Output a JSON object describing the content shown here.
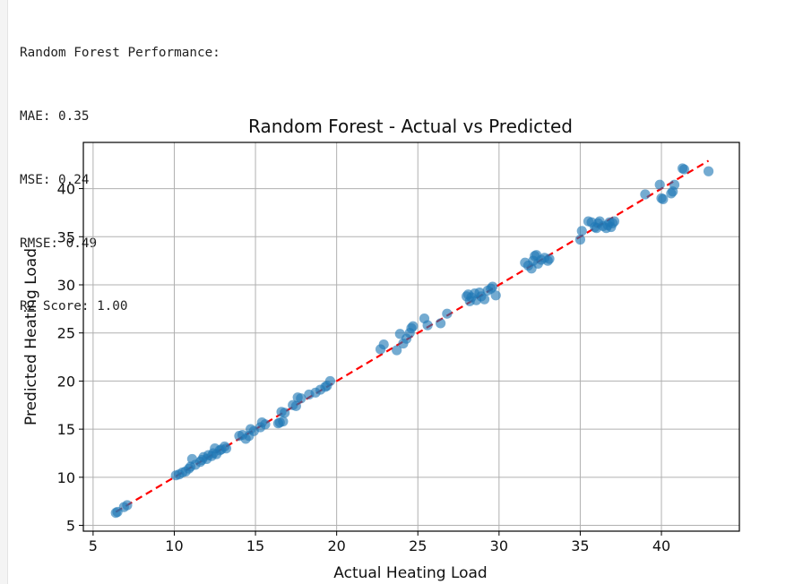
{
  "output": {
    "lines": [
      "Random Forest Performance:",
      "MAE: 0.35",
      "MSE: 0.24",
      "RMSE: 0.49",
      "R2 Score: 1.00"
    ]
  },
  "chart_data": {
    "type": "scatter",
    "title": "Random Forest - Actual vs Predicted",
    "xlabel": "Actual Heating Load",
    "ylabel": "Predicted Heating Load",
    "xlim": [
      4.4,
      44.8
    ],
    "ylim": [
      4.4,
      44.8
    ],
    "xticks": [
      5,
      10,
      15,
      20,
      25,
      30,
      35,
      40
    ],
    "yticks": [
      5,
      10,
      15,
      20,
      25,
      30,
      35,
      40
    ],
    "grid": true,
    "point_color": "#1f77b4",
    "reference_line": {
      "x": [
        6.4,
        42.9
      ],
      "y": [
        6.4,
        42.9
      ],
      "color": "#ff0000",
      "style": "dashed"
    },
    "points": [
      [
        6.4,
        6.3
      ],
      [
        6.5,
        6.4
      ],
      [
        6.9,
        6.9
      ],
      [
        7.1,
        7.1
      ],
      [
        10.1,
        10.2
      ],
      [
        10.3,
        10.3
      ],
      [
        10.5,
        10.5
      ],
      [
        10.7,
        10.6
      ],
      [
        10.9,
        10.9
      ],
      [
        11.0,
        11.1
      ],
      [
        11.1,
        11.9
      ],
      [
        11.3,
        11.3
      ],
      [
        11.6,
        11.6
      ],
      [
        11.7,
        11.8
      ],
      [
        11.8,
        12.1
      ],
      [
        12.0,
        11.9
      ],
      [
        12.1,
        12.3
      ],
      [
        12.3,
        12.2
      ],
      [
        12.4,
        12.5
      ],
      [
        12.5,
        13.0
      ],
      [
        12.6,
        12.4
      ],
      [
        12.8,
        12.8
      ],
      [
        12.9,
        12.9
      ],
      [
        13.1,
        13.2
      ],
      [
        13.2,
        13.0
      ],
      [
        14.0,
        14.3
      ],
      [
        14.2,
        14.4
      ],
      [
        14.4,
        14.0
      ],
      [
        14.6,
        14.3
      ],
      [
        14.7,
        15.0
      ],
      [
        14.9,
        14.8
      ],
      [
        15.3,
        15.2
      ],
      [
        15.4,
        15.7
      ],
      [
        15.6,
        15.5
      ],
      [
        16.4,
        15.6
      ],
      [
        16.5,
        15.7
      ],
      [
        16.6,
        16.8
      ],
      [
        16.7,
        15.8
      ],
      [
        16.8,
        16.7
      ],
      [
        17.3,
        17.5
      ],
      [
        17.5,
        17.4
      ],
      [
        17.6,
        18.3
      ],
      [
        17.8,
        18.2
      ],
      [
        18.3,
        18.6
      ],
      [
        18.7,
        18.8
      ],
      [
        19.0,
        19.1
      ],
      [
        19.3,
        19.4
      ],
      [
        19.4,
        19.5
      ],
      [
        19.6,
        20.0
      ],
      [
        22.7,
        23.3
      ],
      [
        22.9,
        23.8
      ],
      [
        23.7,
        23.2
      ],
      [
        23.9,
        24.9
      ],
      [
        24.1,
        23.9
      ],
      [
        24.3,
        24.4
      ],
      [
        24.5,
        25.0
      ],
      [
        24.6,
        25.5
      ],
      [
        24.7,
        25.7
      ],
      [
        25.4,
        26.5
      ],
      [
        25.6,
        25.8
      ],
      [
        26.4,
        26.0
      ],
      [
        26.8,
        27.0
      ],
      [
        28.0,
        28.8
      ],
      [
        28.1,
        29.0
      ],
      [
        28.2,
        28.3
      ],
      [
        28.3,
        28.7
      ],
      [
        28.5,
        29.1
      ],
      [
        28.6,
        28.4
      ],
      [
        28.8,
        29.2
      ],
      [
        28.9,
        28.8
      ],
      [
        29.1,
        28.5
      ],
      [
        29.3,
        29.4
      ],
      [
        29.5,
        29.6
      ],
      [
        29.6,
        29.8
      ],
      [
        29.8,
        28.9
      ],
      [
        31.6,
        32.3
      ],
      [
        31.8,
        32.0
      ],
      [
        32.0,
        31.7
      ],
      [
        32.1,
        32.5
      ],
      [
        32.2,
        33.0
      ],
      [
        32.3,
        33.1
      ],
      [
        32.4,
        32.2
      ],
      [
        32.6,
        32.6
      ],
      [
        32.8,
        32.8
      ],
      [
        33.0,
        32.5
      ],
      [
        33.1,
        32.7
      ],
      [
        35.0,
        34.7
      ],
      [
        35.1,
        35.6
      ],
      [
        35.5,
        36.6
      ],
      [
        35.7,
        36.5
      ],
      [
        35.9,
        36.0
      ],
      [
        36.0,
        35.9
      ],
      [
        36.1,
        36.4
      ],
      [
        36.2,
        36.6
      ],
      [
        36.4,
        36.1
      ],
      [
        36.6,
        35.9
      ],
      [
        36.7,
        36.2
      ],
      [
        36.8,
        36.5
      ],
      [
        36.9,
        36.0
      ],
      [
        37.0,
        36.4
      ],
      [
        37.1,
        36.6
      ],
      [
        39.0,
        39.4
      ],
      [
        39.9,
        40.4
      ],
      [
        40.0,
        39.0
      ],
      [
        40.1,
        38.9
      ],
      [
        40.6,
        39.5
      ],
      [
        40.7,
        39.7
      ],
      [
        40.8,
        40.4
      ],
      [
        41.3,
        42.1
      ],
      [
        41.4,
        42.0
      ],
      [
        42.9,
        41.8
      ]
    ]
  }
}
